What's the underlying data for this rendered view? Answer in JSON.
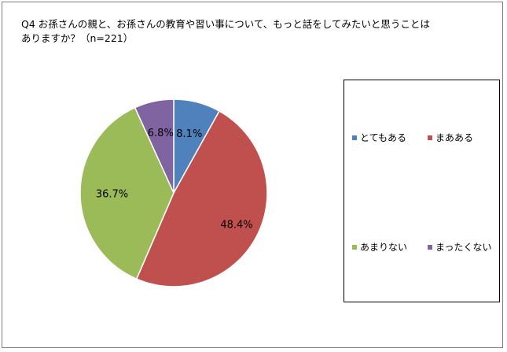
{
  "chart_data": {
    "type": "pie",
    "title": "Q4 お孫さんの親と、お孫さんの教育や習い事について、もっと話をしてみたいと思うことはありますか？（n=221）",
    "categories": [
      "とてもある",
      "まあある",
      "あまりない",
      "まったくない"
    ],
    "values": [
      8.1,
      48.4,
      36.7,
      6.8
    ],
    "value_labels": [
      "8.1%",
      "48.4%",
      "36.7%",
      "6.8%"
    ],
    "colors": [
      "#4f81bd",
      "#c0504d",
      "#9bbb59",
      "#8064a2"
    ],
    "legend_position": "right"
  }
}
